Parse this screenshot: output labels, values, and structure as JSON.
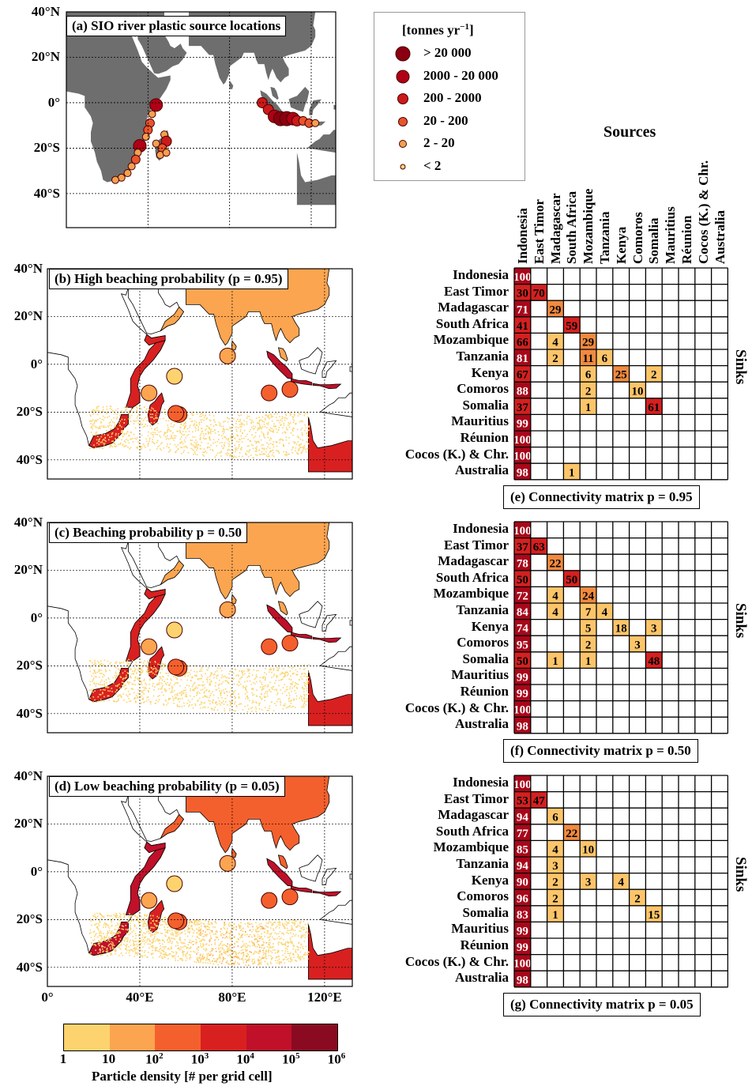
{
  "panels": {
    "a": {
      "title": "(a) SIO river plastic source locations"
    },
    "b": {
      "title": "(b) High beaching probability (p = 0.95)"
    },
    "c": {
      "title": "(c) Beaching probability p = 0.50"
    },
    "d": {
      "title": "(d) Low beaching probability (p = 0.05)"
    }
  },
  "lat_labels_a": [
    "40°N",
    "20°N",
    "0°",
    "20°S",
    "40°S"
  ],
  "lat_labels": [
    "40°N",
    "20°N",
    "0°",
    "20°S",
    "40°S"
  ],
  "lon_labels": [
    "0°",
    "40°E",
    "80°E",
    "120°E"
  ],
  "legend": {
    "title": "[tonnes yr",
    "title_exp": "−1",
    "title_end": "]",
    "entries": [
      {
        "label": "> 20 000",
        "color": "#8b0010"
      },
      {
        "label": "2000 - 20 000",
        "color": "#b00016"
      },
      {
        "label": "200 - 2000",
        "color": "#cc1a1a"
      },
      {
        "label": "20 - 200",
        "color": "#e8552c"
      },
      {
        "label": "2 - 20",
        "color": "#f4a050"
      },
      {
        "label": "< 2",
        "color": "#fbd27a"
      }
    ]
  },
  "colorbar": {
    "label": "Particle density [# per grid cell]",
    "colors": [
      "#fcd36e",
      "#fba550",
      "#f4602d",
      "#d92020",
      "#c0102a",
      "#8a0a22"
    ],
    "ticks": [
      {
        "base": "1",
        "exp": ""
      },
      {
        "base": "10",
        "exp": ""
      },
      {
        "base": "10",
        "exp": "2"
      },
      {
        "base": "10",
        "exp": "3"
      },
      {
        "base": "10",
        "exp": "4"
      },
      {
        "base": "10",
        "exp": "5"
      },
      {
        "base": "10",
        "exp": "6"
      }
    ]
  },
  "matrix": {
    "sources_label": "Sources",
    "sinks_label": "Sinks",
    "sources": [
      "Indonesia",
      "East Timor",
      "Madagascar",
      "South Africa",
      "Mozambique",
      "Tanzania",
      "Kenya",
      "Comoros",
      "Somalia",
      "Mauritius",
      "Réunion",
      "Cocos (K.) & Chr.",
      "Australia"
    ],
    "sinks": [
      "Indonesia",
      "East Timor",
      "Madagascar",
      "South Africa",
      "Mozambique",
      "Tanzania",
      "Kenya",
      "Comoros",
      "Somalia",
      "Mauritius",
      "Réunion",
      "Cocos (K.) & Chr.",
      "Australia"
    ],
    "colors": {
      "dark": "#a8071a",
      "red": "#d42020",
      "orange": "#f08a40",
      "light": "#fcc56a"
    }
  },
  "matrices": [
    {
      "caption": "(e) Connectivity matrix p = 0.95",
      "cells": [
        [
          0,
          0,
          100,
          "dark"
        ],
        [
          1,
          0,
          30,
          "red"
        ],
        [
          1,
          1,
          70,
          "red"
        ],
        [
          2,
          0,
          71,
          "dark"
        ],
        [
          2,
          2,
          29,
          "orange"
        ],
        [
          3,
          0,
          41,
          "red"
        ],
        [
          3,
          3,
          59,
          "red"
        ],
        [
          4,
          0,
          66,
          "red"
        ],
        [
          4,
          2,
          4,
          "light"
        ],
        [
          4,
          4,
          29,
          "orange"
        ],
        [
          5,
          0,
          81,
          "dark"
        ],
        [
          5,
          2,
          2,
          "light"
        ],
        [
          5,
          4,
          11,
          "orange"
        ],
        [
          5,
          5,
          6,
          "light"
        ],
        [
          6,
          0,
          67,
          "red"
        ],
        [
          6,
          4,
          6,
          "light"
        ],
        [
          6,
          6,
          25,
          "orange"
        ],
        [
          6,
          8,
          2,
          "light"
        ],
        [
          7,
          0,
          88,
          "dark"
        ],
        [
          7,
          4,
          2,
          "light"
        ],
        [
          7,
          7,
          10,
          "light"
        ],
        [
          8,
          0,
          37,
          "red"
        ],
        [
          8,
          4,
          1,
          "light"
        ],
        [
          8,
          8,
          61,
          "red"
        ],
        [
          9,
          0,
          99,
          "dark"
        ],
        [
          10,
          0,
          100,
          "dark"
        ],
        [
          11,
          0,
          100,
          "dark"
        ],
        [
          12,
          0,
          98,
          "dark"
        ],
        [
          12,
          3,
          1,
          "light"
        ]
      ]
    },
    {
      "caption": "(f) Connectivity matrix p = 0.50",
      "cells": [
        [
          0,
          0,
          100,
          "dark"
        ],
        [
          1,
          0,
          37,
          "red"
        ],
        [
          1,
          1,
          63,
          "red"
        ],
        [
          2,
          0,
          78,
          "dark"
        ],
        [
          2,
          2,
          22,
          "orange"
        ],
        [
          3,
          0,
          50,
          "red"
        ],
        [
          3,
          3,
          50,
          "red"
        ],
        [
          4,
          0,
          72,
          "dark"
        ],
        [
          4,
          2,
          4,
          "light"
        ],
        [
          4,
          4,
          24,
          "orange"
        ],
        [
          5,
          0,
          84,
          "dark"
        ],
        [
          5,
          2,
          4,
          "light"
        ],
        [
          5,
          4,
          7,
          "light"
        ],
        [
          5,
          5,
          4,
          "light"
        ],
        [
          6,
          0,
          74,
          "dark"
        ],
        [
          6,
          4,
          5,
          "light"
        ],
        [
          6,
          6,
          18,
          "light"
        ],
        [
          6,
          8,
          3,
          "light"
        ],
        [
          7,
          0,
          95,
          "dark"
        ],
        [
          7,
          4,
          2,
          "light"
        ],
        [
          7,
          7,
          3,
          "light"
        ],
        [
          8,
          0,
          50,
          "red"
        ],
        [
          8,
          2,
          1,
          "light"
        ],
        [
          8,
          4,
          1,
          "light"
        ],
        [
          8,
          8,
          48,
          "red"
        ],
        [
          9,
          0,
          99,
          "dark"
        ],
        [
          10,
          0,
          99,
          "dark"
        ],
        [
          11,
          0,
          100,
          "dark"
        ],
        [
          12,
          0,
          98,
          "dark"
        ]
      ]
    },
    {
      "caption": "(g) Connectivity matrix p = 0.05",
      "cells": [
        [
          0,
          0,
          100,
          "dark"
        ],
        [
          1,
          0,
          53,
          "red"
        ],
        [
          1,
          1,
          47,
          "red"
        ],
        [
          2,
          0,
          94,
          "dark"
        ],
        [
          2,
          2,
          6,
          "light"
        ],
        [
          3,
          0,
          77,
          "dark"
        ],
        [
          3,
          3,
          22,
          "orange"
        ],
        [
          4,
          0,
          85,
          "dark"
        ],
        [
          4,
          2,
          4,
          "light"
        ],
        [
          4,
          4,
          10,
          "light"
        ],
        [
          5,
          0,
          94,
          "dark"
        ],
        [
          5,
          2,
          3,
          "light"
        ],
        [
          6,
          0,
          90,
          "dark"
        ],
        [
          6,
          2,
          2,
          "light"
        ],
        [
          6,
          4,
          3,
          "light"
        ],
        [
          6,
          6,
          4,
          "light"
        ],
        [
          7,
          0,
          96,
          "dark"
        ],
        [
          7,
          2,
          2,
          "light"
        ],
        [
          7,
          7,
          2,
          "light"
        ],
        [
          8,
          0,
          83,
          "dark"
        ],
        [
          8,
          2,
          1,
          "light"
        ],
        [
          8,
          8,
          15,
          "light"
        ],
        [
          9,
          0,
          99,
          "dark"
        ],
        [
          10,
          0,
          99,
          "dark"
        ],
        [
          11,
          0,
          100,
          "dark"
        ],
        [
          12,
          0,
          98,
          "dark"
        ]
      ]
    }
  ],
  "sources_a": [
    {
      "lon": 44,
      "lat": -1,
      "cls": 1
    },
    {
      "lon": 42,
      "lat": -5,
      "cls": 4
    },
    {
      "lon": 41,
      "lat": -9,
      "cls": 3
    },
    {
      "lon": 40,
      "lat": -12,
      "cls": 3
    },
    {
      "lon": 39,
      "lat": -15,
      "cls": 4
    },
    {
      "lon": 36,
      "lat": -19,
      "cls": 1
    },
    {
      "lon": 35,
      "lat": -22,
      "cls": 4
    },
    {
      "lon": 34,
      "lat": -25,
      "cls": 3
    },
    {
      "lon": 32,
      "lat": -28,
      "cls": 4
    },
    {
      "lon": 30,
      "lat": -31,
      "cls": 4
    },
    {
      "lon": 27,
      "lat": -33,
      "cls": 4
    },
    {
      "lon": 24,
      "lat": -34,
      "cls": 4
    },
    {
      "lon": 48,
      "lat": -14,
      "cls": 4
    },
    {
      "lon": 49,
      "lat": -17,
      "cls": 2
    },
    {
      "lon": 47,
      "lat": -20,
      "cls": 3
    },
    {
      "lon": 46,
      "lat": -23,
      "cls": 4
    },
    {
      "lon": 49,
      "lat": -22,
      "cls": 4
    },
    {
      "lon": 44,
      "lat": -18,
      "cls": 4
    },
    {
      "lon": 96,
      "lat": 0,
      "cls": 2
    },
    {
      "lon": 99,
      "lat": -3,
      "cls": 2
    },
    {
      "lon": 102,
      "lat": -6,
      "cls": 1
    },
    {
      "lon": 105,
      "lat": -7,
      "cls": 0
    },
    {
      "lon": 108,
      "lat": -7,
      "cls": 0
    },
    {
      "lon": 111,
      "lat": -7,
      "cls": 1
    },
    {
      "lon": 113,
      "lat": -8,
      "cls": 2
    },
    {
      "lon": 116,
      "lat": -8,
      "cls": 3
    },
    {
      "lon": 119,
      "lat": -9,
      "cls": 3
    },
    {
      "lon": 122,
      "lat": -9,
      "cls": 4
    }
  ],
  "region_density": {
    "b": {
      "eafrica": 3,
      "somalia": 3,
      "safrica": 3,
      "madagascar": 3,
      "india": 1,
      "arabia": 1,
      "indonesia": 4,
      "australia": 3
    },
    "c": {
      "eafrica": 3,
      "somalia": 3,
      "safrica": 3,
      "madagascar": 3,
      "india": 1,
      "arabia": 1,
      "indonesia": 4,
      "australia": 3
    },
    "d": {
      "eafrica": 4,
      "somalia": 4,
      "safrica": 4,
      "madagascar": 3,
      "india": 2,
      "arabia": 2,
      "indonesia": 4,
      "australia": 3
    }
  }
}
